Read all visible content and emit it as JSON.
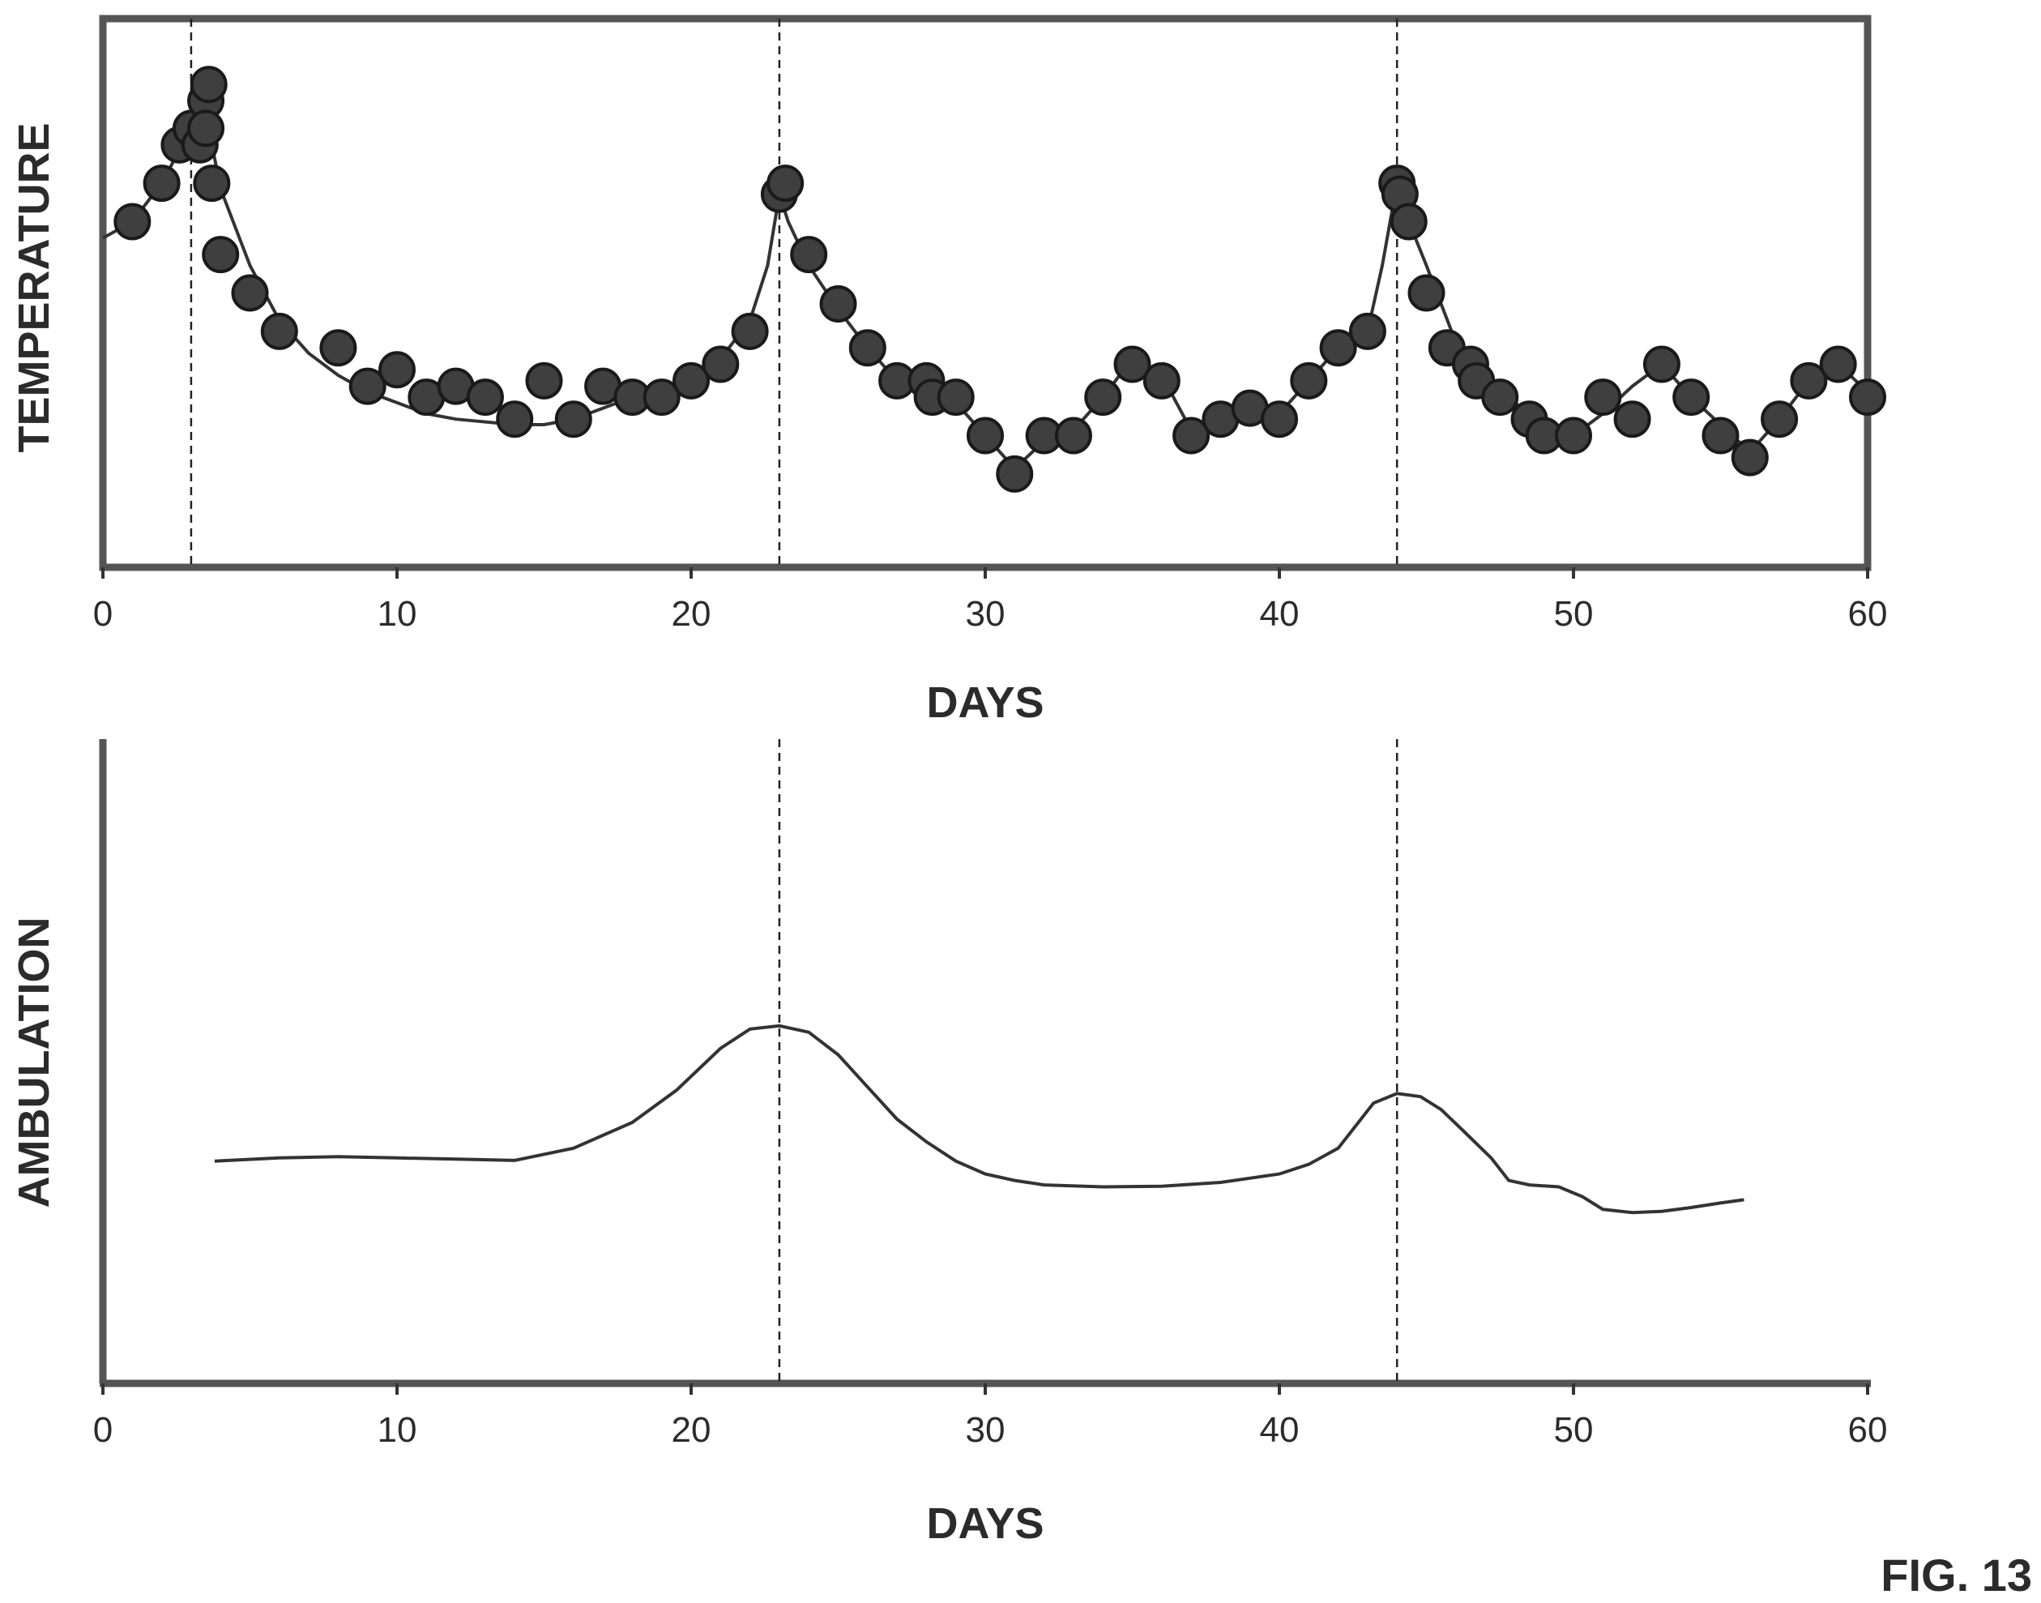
{
  "figure_label": "FIG. 13",
  "chart_data": [
    {
      "type": "scatter",
      "title": "",
      "xlabel": "DAYS",
      "ylabel": "TEMPERATURE",
      "xlim": [
        0,
        60
      ],
      "ylim": [
        0,
        100
      ],
      "xticks": [
        "0",
        "10",
        "20",
        "30",
        "40",
        "50",
        "60"
      ],
      "yticks": [],
      "marker_days": [
        3,
        23,
        44
      ],
      "grid": false,
      "legend": "none",
      "series": [
        {
          "style": "markers",
          "points": [
            [
              1,
              63
            ],
            [
              2,
              70
            ],
            [
              2.6,
              77
            ],
            [
              3,
              80
            ],
            [
              3.3,
              77
            ],
            [
              3.5,
              85
            ],
            [
              3.6,
              88
            ],
            [
              3.5,
              80
            ],
            [
              3.7,
              70
            ],
            [
              4,
              57
            ],
            [
              5,
              50
            ],
            [
              6,
              43
            ],
            [
              8,
              40
            ],
            [
              9,
              33
            ],
            [
              10,
              36
            ],
            [
              11,
              31
            ],
            [
              12,
              33
            ],
            [
              13,
              31
            ],
            [
              14,
              27
            ],
            [
              15,
              34
            ],
            [
              16,
              27
            ],
            [
              17,
              33
            ],
            [
              18,
              31
            ],
            [
              19,
              31
            ],
            [
              20,
              34
            ],
            [
              21,
              37
            ],
            [
              22,
              43
            ],
            [
              23,
              68
            ],
            [
              23.2,
              70
            ],
            [
              24,
              57
            ],
            [
              25,
              48
            ],
            [
              26,
              40
            ],
            [
              27,
              34
            ],
            [
              28,
              34
            ],
            [
              28.2,
              31
            ],
            [
              29,
              31
            ],
            [
              30,
              24
            ],
            [
              31,
              17
            ],
            [
              32,
              24
            ],
            [
              33,
              24
            ],
            [
              34,
              31
            ],
            [
              35,
              37
            ],
            [
              36,
              34
            ],
            [
              37,
              24
            ],
            [
              38,
              27
            ],
            [
              39,
              29
            ],
            [
              40,
              27
            ],
            [
              41,
              34
            ],
            [
              42,
              40
            ],
            [
              43,
              43
            ],
            [
              44,
              70
            ],
            [
              44.1,
              68
            ],
            [
              44.4,
              63
            ],
            [
              45,
              50
            ],
            [
              45.7,
              40
            ],
            [
              46.5,
              37
            ],
            [
              46.7,
              34
            ],
            [
              47.5,
              31
            ],
            [
              48.5,
              27
            ],
            [
              49,
              24
            ],
            [
              50,
              24
            ],
            [
              51,
              31
            ],
            [
              52,
              27
            ],
            [
              53,
              37
            ],
            [
              54,
              31
            ],
            [
              55,
              24
            ],
            [
              56,
              20
            ],
            [
              57,
              27
            ],
            [
              58,
              34
            ],
            [
              59,
              37
            ],
            [
              60,
              31
            ]
          ]
        },
        {
          "style": "line",
          "points": [
            [
              0,
              60
            ],
            [
              1,
              63
            ],
            [
              2,
              70
            ],
            [
              3,
              80
            ],
            [
              3.6,
              80
            ],
            [
              4,
              69
            ],
            [
              5,
              55
            ],
            [
              6,
              45
            ],
            [
              7,
              39
            ],
            [
              8,
              35
            ],
            [
              9,
              32
            ],
            [
              10,
              30
            ],
            [
              11,
              28
            ],
            [
              12,
              27
            ],
            [
              14,
              26
            ],
            [
              15,
              26
            ],
            [
              16,
              27
            ],
            [
              17,
              29
            ],
            [
              18,
              31
            ],
            [
              19,
              32
            ],
            [
              20,
              35
            ],
            [
              21,
              38
            ],
            [
              22,
              45
            ],
            [
              22.6,
              55
            ],
            [
              23,
              68
            ],
            [
              23.3,
              63
            ],
            [
              24,
              55
            ],
            [
              25,
              47
            ],
            [
              26,
              40
            ],
            [
              27,
              34
            ],
            [
              28,
              33
            ],
            [
              29,
              30
            ],
            [
              30,
              24
            ],
            [
              31,
              18
            ],
            [
              32,
              23
            ],
            [
              33,
              25
            ],
            [
              34,
              31
            ],
            [
              35,
              38
            ],
            [
              36,
              35
            ],
            [
              37,
              25
            ],
            [
              38,
              28
            ],
            [
              39,
              29
            ],
            [
              40,
              28
            ],
            [
              41,
              34
            ],
            [
              42,
              40
            ],
            [
              43,
              43
            ],
            [
              43.5,
              55
            ],
            [
              44,
              70
            ],
            [
              44.4,
              63
            ],
            [
              45,
              55
            ],
            [
              45.5,
              48
            ],
            [
              46,
              41
            ],
            [
              47,
              34
            ],
            [
              48,
              30
            ],
            [
              49,
              26
            ],
            [
              50,
              24
            ],
            [
              51,
              28
            ],
            [
              52,
              33
            ],
            [
              53,
              37
            ],
            [
              54,
              31
            ],
            [
              55,
              26
            ],
            [
              56,
              21
            ],
            [
              57,
              27
            ],
            [
              58,
              34
            ],
            [
              59,
              37
            ],
            [
              60,
              32
            ]
          ]
        }
      ]
    },
    {
      "type": "line",
      "title": "",
      "xlabel": "DAYS",
      "ylabel": "AMBULATION",
      "xlim": [
        0,
        60
      ],
      "ylim": [
        0,
        100
      ],
      "xticks": [
        "0",
        "10",
        "20",
        "30",
        "40",
        "50",
        "60"
      ],
      "yticks": [],
      "marker_days": [
        23,
        44
      ],
      "grid": false,
      "legend": "none",
      "series": [
        {
          "points": [
            [
              3.8,
              34.5
            ],
            [
              6,
              35
            ],
            [
              8,
              35.2
            ],
            [
              10,
              35
            ],
            [
              12,
              34.8
            ],
            [
              14,
              34.6
            ],
            [
              16,
              36.5
            ],
            [
              18,
              40.5
            ],
            [
              19.5,
              45.5
            ],
            [
              21,
              52
            ],
            [
              22,
              55
            ],
            [
              23,
              55.5
            ],
            [
              24,
              54.5
            ],
            [
              25,
              51
            ],
            [
              26,
              46
            ],
            [
              27,
              41
            ],
            [
              28,
              37.5
            ],
            [
              29,
              34.5
            ],
            [
              30,
              32.5
            ],
            [
              31,
              31.5
            ],
            [
              32,
              30.8
            ],
            [
              34,
              30.5
            ],
            [
              36,
              30.6
            ],
            [
              38,
              31.2
            ],
            [
              40,
              32.5
            ],
            [
              41,
              34
            ],
            [
              42,
              36.5
            ],
            [
              42.6,
              40
            ],
            [
              43.2,
              43.5
            ],
            [
              44,
              45
            ],
            [
              44.8,
              44.5
            ],
            [
              45.5,
              42.5
            ],
            [
              46.3,
              39
            ],
            [
              47.2,
              35
            ],
            [
              47.8,
              31.5
            ],
            [
              48.5,
              30.8
            ],
            [
              49.5,
              30.5
            ],
            [
              50.3,
              29
            ],
            [
              51,
              27
            ],
            [
              52,
              26.5
            ],
            [
              53,
              26.7
            ],
            [
              54,
              27.3
            ],
            [
              55,
              28
            ],
            [
              55.8,
              28.5
            ]
          ]
        }
      ]
    }
  ]
}
